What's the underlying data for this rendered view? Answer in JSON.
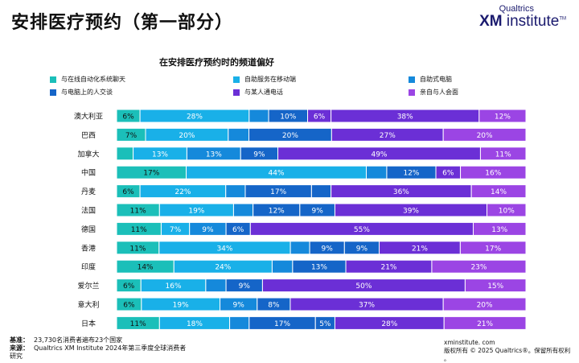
{
  "page_title": "安排医疗预约（第一部分）",
  "logo": {
    "small": "Qualtrics",
    "big_bold": "XM",
    "big_rest": " institute",
    "tm": "TM"
  },
  "footer": {
    "base_label": "基准：",
    "base_value": "23,730名消费者遍布23个国家",
    "source_label": "来源：",
    "source_value": "Qualtrics XM Institute 2024年第三季度全球消费者",
    "source_cont": "研究",
    "site": "xminstitute.  com",
    "copyright": "版权所有 © 2025 Qualtrics®。保留所有权利",
    "dot": "。"
  },
  "chart_data": {
    "type": "bar",
    "orientation": "horizontal",
    "stacked": true,
    "normalized": true,
    "title": "在安排医疗预约时的频道偏好",
    "legend_position": "top",
    "categories": [
      "澳大利亚",
      "巴西",
      "加拿大",
      "中国",
      "丹麦",
      "法国",
      "德国",
      "香港",
      "印度",
      "爱尔兰",
      "意大利",
      "日本"
    ],
    "series": [
      {
        "name": "与在线自动化系统聊天",
        "color": "#1bbfb9",
        "values": [
          6,
          7,
          4,
          17,
          6,
          11,
          11,
          11,
          14,
          6,
          6,
          11
        ]
      },
      {
        "name": "自助服务在移动端",
        "color": "#19b0e8",
        "values": [
          28,
          20,
          13,
          44,
          22,
          19,
          7,
          34,
          24,
          16,
          19,
          18
        ]
      },
      {
        "name": "自助式电脑",
        "color": "#1589db",
        "values": [
          5,
          5,
          13,
          5,
          5,
          5,
          9,
          5,
          5,
          5,
          9,
          5
        ]
      },
      {
        "name": "与电脑上的人交谈",
        "color": "#1565c8",
        "values": [
          10,
          20,
          9,
          12,
          17,
          12,
          6,
          9,
          13,
          9,
          8,
          17
        ]
      },
      {
        "name": "与某人通电话",
        "color": "#6b2fd6",
        "values": [
          6,
          27,
          49,
          6,
          36,
          9,
          55,
          9,
          21,
          50,
          37,
          5
        ]
      },
      {
        "name": "亲自与人会面",
        "color": "#9b45e4",
        "values": [
          38,
          20,
          11,
          16,
          14,
          39,
          13,
          21,
          23,
          15,
          20,
          28
        ]
      }
    ],
    "labels": [
      [
        "6%",
        "28%",
        "",
        "10%",
        "6%",
        "38%",
        "12%"
      ],
      [
        "7%",
        "20%",
        "",
        "20%",
        "27%",
        "20%"
      ],
      [
        "",
        "13%",
        "13%",
        "9%",
        "49%",
        "11%"
      ],
      [
        "17%",
        "44%",
        "",
        "12%",
        "6%",
        "16%"
      ],
      [
        "6%",
        "22%",
        "",
        "17%",
        "",
        "36%",
        "14%"
      ],
      [
        "11%",
        "19%",
        "",
        "12%",
        "9%",
        "39%",
        "10%"
      ],
      [
        "11%",
        "7%",
        "9%",
        "6%",
        "55%",
        "13%"
      ],
      [
        "11%",
        "34%",
        "",
        "9%",
        "9%",
        "21%",
        "17%"
      ],
      [
        "14%",
        "24%",
        "",
        "13%",
        "21%",
        "23%"
      ],
      [
        "6%",
        "16%",
        "",
        "9%",
        "50%",
        "15%"
      ],
      [
        "6%",
        "19%",
        "9%",
        "8%",
        "37%",
        "20%"
      ],
      [
        "11%",
        "18%",
        "",
        "17%",
        "5%",
        "28%",
        "21%"
      ]
    ],
    "segments": [
      [
        6,
        28,
        5,
        10,
        6,
        38,
        12
      ],
      [
        7,
        20,
        5,
        20,
        27,
        20
      ],
      [
        4,
        13,
        13,
        9,
        49,
        11
      ],
      [
        17,
        44,
        5,
        12,
        6,
        16
      ],
      [
        6,
        22,
        5,
        17,
        5,
        36,
        14
      ],
      [
        11,
        19,
        5,
        12,
        9,
        39,
        10
      ],
      [
        11,
        7,
        9,
        6,
        55,
        13
      ],
      [
        11,
        34,
        5,
        9,
        9,
        21,
        17
      ],
      [
        14,
        24,
        5,
        13,
        21,
        23
      ],
      [
        6,
        16,
        5,
        9,
        50,
        15
      ],
      [
        6,
        19,
        9,
        8,
        37,
        20
      ],
      [
        11,
        18,
        5,
        17,
        5,
        28,
        21
      ]
    ],
    "segment_colors": [
      [
        "#1bbfb9",
        "#19b0e8",
        "#1589db",
        "#1565c8",
        "#6b2fd6",
        "#6b2fd6",
        "#9b45e4"
      ],
      [
        "#1bbfb9",
        "#19b0e8",
        "#1589db",
        "#1565c8",
        "#6b2fd6",
        "#9b45e4"
      ],
      [
        "#1bbfb9",
        "#19b0e8",
        "#1589db",
        "#1565c8",
        "#6b2fd6",
        "#9b45e4"
      ],
      [
        "#1bbfb9",
        "#19b0e8",
        "#1589db",
        "#1565c8",
        "#6b2fd6",
        "#9b45e4"
      ],
      [
        "#1bbfb9",
        "#19b0e8",
        "#1589db",
        "#1565c8",
        "#1565c8",
        "#6b2fd6",
        "#9b45e4"
      ],
      [
        "#1bbfb9",
        "#19b0e8",
        "#1589db",
        "#1565c8",
        "#1565c8",
        "#6b2fd6",
        "#9b45e4"
      ],
      [
        "#1bbfb9",
        "#19b0e8",
        "#1589db",
        "#1565c8",
        "#6b2fd6",
        "#9b45e4"
      ],
      [
        "#1bbfb9",
        "#19b0e8",
        "#1589db",
        "#1565c8",
        "#1565c8",
        "#6b2fd6",
        "#9b45e4"
      ],
      [
        "#1bbfb9",
        "#19b0e8",
        "#1589db",
        "#1565c8",
        "#6b2fd6",
        "#9b45e4"
      ],
      [
        "#1bbfb9",
        "#19b0e8",
        "#1589db",
        "#1565c8",
        "#6b2fd6",
        "#9b45e4"
      ],
      [
        "#1bbfb9",
        "#19b0e8",
        "#1589db",
        "#1565c8",
        "#6b2fd6",
        "#9b45e4"
      ],
      [
        "#1bbfb9",
        "#19b0e8",
        "#1589db",
        "#1565c8",
        "#1565c8",
        "#6b2fd6",
        "#9b45e4"
      ]
    ],
    "xlim": [
      0,
      100
    ]
  }
}
